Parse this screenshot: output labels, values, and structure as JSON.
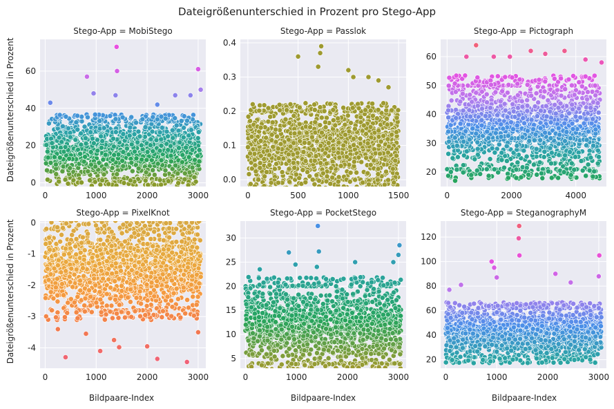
{
  "figure": {
    "title": "Dateigrößenunterschied in Prozent pro Stego-App",
    "ylabel": "Dateigrößenunterschied in Prozent",
    "xlabel": "Bildpaare-Index"
  },
  "chart_data": [
    {
      "type": "scatter",
      "title": "Stego-App = MobiStego",
      "xlim": [
        -100,
        3150
      ],
      "ylim": [
        -2,
        77
      ],
      "xticks": [
        0,
        1000,
        2000,
        3000
      ],
      "yticks": [
        0,
        20,
        40,
        60
      ],
      "n_points": 3050,
      "band": [
        2,
        33
      ],
      "outliers": [
        [
          1400,
          73
        ],
        [
          1410,
          60
        ],
        [
          3000,
          61
        ],
        [
          820,
          57
        ],
        [
          1380,
          47
        ],
        [
          3050,
          50
        ],
        [
          950,
          48
        ],
        [
          2550,
          47
        ],
        [
          2850,
          47
        ],
        [
          100,
          43
        ],
        [
          2200,
          42
        ]
      ],
      "color_range": [
        0,
        65
      ],
      "palette": [
        "#8a9a2c",
        "#27a45c",
        "#2aa3a3",
        "#4b8fe8",
        "#b57ced",
        "#e84fe0"
      ]
    },
    {
      "type": "scatter",
      "title": "Stego-App = Passlok",
      "xlim": [
        -75,
        1575
      ],
      "ylim": [
        -0.02,
        0.41
      ],
      "xticks": [
        0,
        500,
        1000,
        1500
      ],
      "yticks": [
        0.0,
        0.1,
        0.2,
        0.3,
        0.4
      ],
      "n_points": 1500,
      "band": [
        0.0,
        0.2
      ],
      "outliers": [
        [
          730,
          0.39
        ],
        [
          500,
          0.36
        ],
        [
          720,
          0.37
        ],
        [
          1000,
          0.32
        ],
        [
          1050,
          0.3
        ],
        [
          700,
          0.33
        ],
        [
          1300,
          0.29
        ],
        [
          1200,
          0.3
        ],
        [
          1400,
          0.27
        ]
      ],
      "color_range": [
        0,
        0.4
      ],
      "palette": [
        "#9e9a30",
        "#9e9a30"
      ]
    },
    {
      "type": "scatter",
      "title": "Stego-App = Pictograph",
      "xlim": [
        -200,
        4950
      ],
      "ylim": [
        15,
        66
      ],
      "xticks": [
        0,
        2000,
        4000
      ],
      "yticks": [
        20,
        30,
        40,
        50,
        60
      ],
      "n_points": 4750,
      "band": [
        21,
        50
      ],
      "outliers": [
        [
          900,
          64
        ],
        [
          600,
          60
        ],
        [
          1450,
          60
        ],
        [
          1950,
          60
        ],
        [
          2600,
          62
        ],
        [
          3050,
          61
        ],
        [
          3650,
          62
        ],
        [
          4300,
          59
        ],
        [
          4800,
          58
        ],
        [
          250,
          17
        ],
        [
          1900,
          18
        ],
        [
          2150,
          18
        ],
        [
          3450,
          18
        ],
        [
          3850,
          19
        ],
        [
          750,
          19
        ]
      ],
      "color_range": [
        17,
        64
      ],
      "palette": [
        "#27a45c",
        "#2aa3a3",
        "#4b8fe8",
        "#b57ced",
        "#e84fe0",
        "#f0617a"
      ]
    },
    {
      "type": "scatter",
      "title": "Stego-App = PixelKnot",
      "xlim": [
        -100,
        3150
      ],
      "ylim": [
        -4.65,
        0.05
      ],
      "xticks": [
        0,
        1000,
        2000,
        3000
      ],
      "yticks": [
        -4,
        -3,
        -2,
        -1,
        0
      ],
      "n_points": 3050,
      "band": [
        -2.8,
        -0.2
      ],
      "outliers": [
        [
          400,
          -4.3
        ],
        [
          1080,
          -4.1
        ],
        [
          1450,
          -3.98
        ],
        [
          2200,
          -4.35
        ],
        [
          2780,
          -4.45
        ],
        [
          2000,
          -3.95
        ],
        [
          1350,
          -3.75
        ],
        [
          3000,
          -3.5
        ],
        [
          800,
          -3.55
        ],
        [
          250,
          -3.4
        ]
      ],
      "color_range": [
        -4.5,
        -0.1
      ],
      "palette": [
        "#f0617a",
        "#f27a4e",
        "#f49a40",
        "#e9a93e",
        "#d8a842"
      ]
    },
    {
      "type": "scatter",
      "title": "Stego-App = PocketStego",
      "xlim": [
        -100,
        3150
      ],
      "ylim": [
        3,
        33.5
      ],
      "xticks": [
        0,
        1000,
        2000,
        3000
      ],
      "yticks": [
        5,
        10,
        15,
        20,
        25,
        30
      ],
      "n_points": 3050,
      "band": [
        4,
        20
      ],
      "outliers": [
        [
          1420,
          32.5
        ],
        [
          3020,
          28.5
        ],
        [
          850,
          27
        ],
        [
          1440,
          27.2
        ],
        [
          280,
          23.5
        ],
        [
          2150,
          25
        ],
        [
          2900,
          25
        ],
        [
          980,
          24.5
        ],
        [
          3000,
          26.5
        ],
        [
          1400,
          24
        ]
      ],
      "color_range": [
        3,
        33
      ],
      "palette": [
        "#9e9a30",
        "#27a45c",
        "#2aa3a3",
        "#4b8fe8"
      ]
    },
    {
      "type": "scatter",
      "title": "Stego-App = SteganographyM",
      "xlim": [
        -100,
        3150
      ],
      "ylim": [
        13,
        133
      ],
      "xticks": [
        0,
        1000,
        2000,
        3000
      ],
      "yticks": [
        20,
        40,
        60,
        80,
        100,
        120
      ],
      "n_points": 3050,
      "band": [
        22,
        62
      ],
      "outliers": [
        [
          1440,
          129
        ],
        [
          1430,
          119
        ],
        [
          1445,
          105
        ],
        [
          3010,
          105
        ],
        [
          900,
          100
        ],
        [
          950,
          95
        ],
        [
          2150,
          90
        ],
        [
          3000,
          88
        ],
        [
          1000,
          87
        ],
        [
          2450,
          83
        ],
        [
          300,
          81
        ],
        [
          70,
          77
        ]
      ],
      "color_range": [
        20,
        130
      ],
      "palette": [
        "#2aa3a3",
        "#4b8fe8",
        "#b57ced",
        "#e84fe0",
        "#f0617a"
      ]
    }
  ]
}
